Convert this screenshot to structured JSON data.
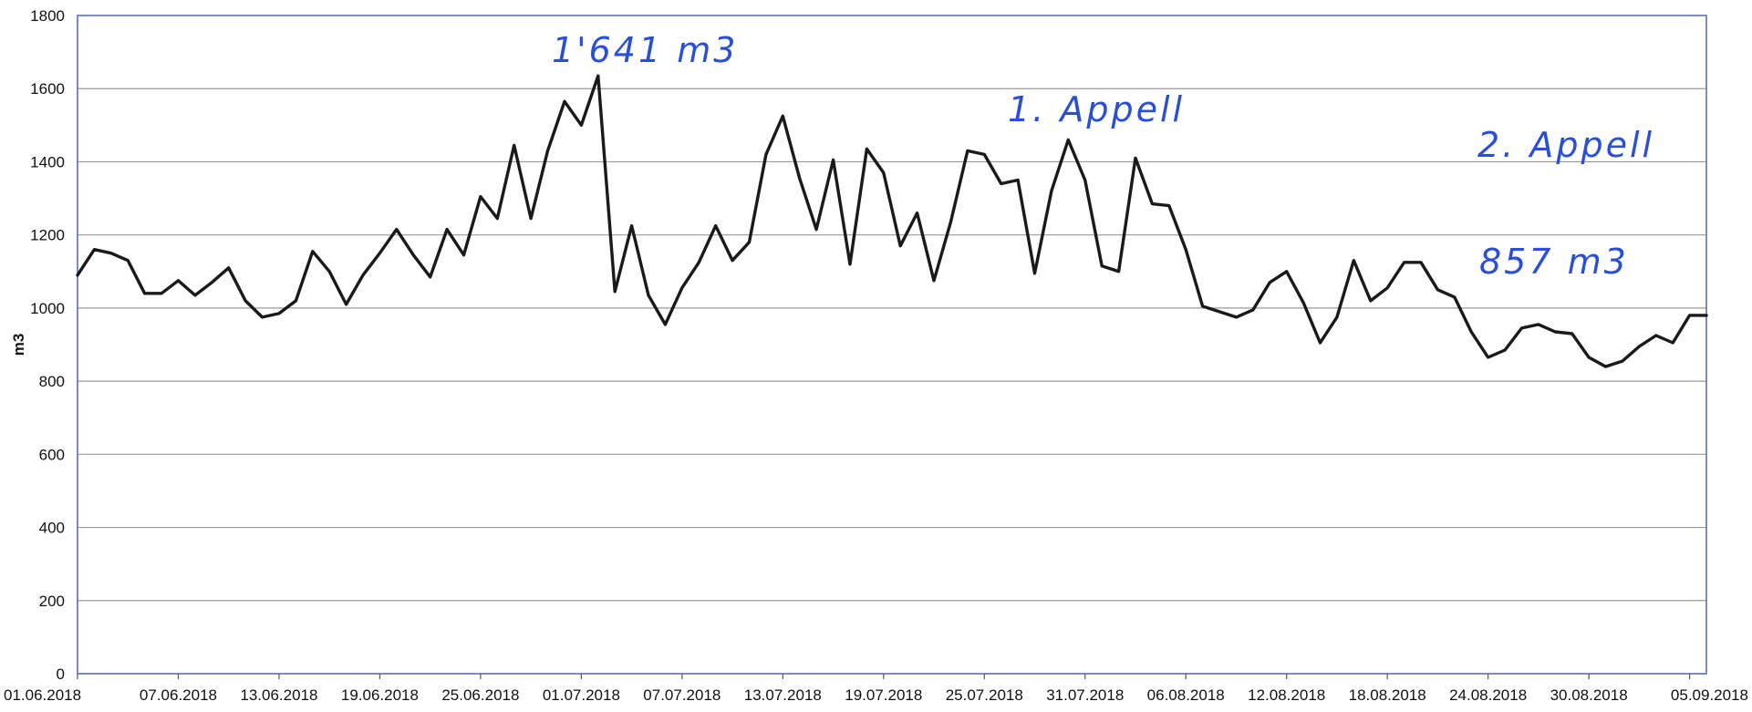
{
  "chart_data": {
    "type": "line",
    "title": "",
    "xlabel": "",
    "ylabel": "m3",
    "ylim": [
      0,
      1800
    ],
    "yticks": [
      0,
      200,
      400,
      600,
      800,
      1000,
      1200,
      1400,
      1600,
      1800
    ],
    "grid": true,
    "x_start": "01.06.2018",
    "x_end": "06.09.2018",
    "x_tick_labels": [
      "01.06.2018",
      "07.06.2018",
      "13.06.2018",
      "19.06.2018",
      "25.06.2018",
      "01.07.2018",
      "07.07.2018",
      "13.07.2018",
      "19.07.2018",
      "25.07.2018",
      "31.07.2018",
      "06.08.2018",
      "12.08.2018",
      "18.08.2018",
      "24.08.2018",
      "30.08.2018",
      "05.09.2018"
    ],
    "series": [
      {
        "name": "",
        "color": "#1a1a1a",
        "x": [
          "01.06.2018",
          "02.06.2018",
          "03.06.2018",
          "04.06.2018",
          "05.06.2018",
          "06.06.2018",
          "07.06.2018",
          "08.06.2018",
          "09.06.2018",
          "10.06.2018",
          "11.06.2018",
          "12.06.2018",
          "13.06.2018",
          "14.06.2018",
          "15.06.2018",
          "16.06.2018",
          "17.06.2018",
          "18.06.2018",
          "19.06.2018",
          "20.06.2018",
          "21.06.2018",
          "22.06.2018",
          "23.06.2018",
          "24.06.2018",
          "25.06.2018",
          "26.06.2018",
          "27.06.2018",
          "28.06.2018",
          "29.06.2018",
          "30.06.2018",
          "01.07.2018",
          "02.07.2018",
          "03.07.2018",
          "04.07.2018",
          "05.07.2018",
          "06.07.2018",
          "07.07.2018",
          "08.07.2018",
          "09.07.2018",
          "10.07.2018",
          "11.07.2018",
          "12.07.2018",
          "13.07.2018",
          "14.07.2018",
          "15.07.2018",
          "16.07.2018",
          "17.07.2018",
          "18.07.2018",
          "19.07.2018",
          "20.07.2018",
          "21.07.2018",
          "22.07.2018",
          "23.07.2018",
          "24.07.2018",
          "25.07.2018",
          "26.07.2018",
          "27.07.2018",
          "28.07.2018",
          "29.07.2018",
          "30.07.2018",
          "31.07.2018",
          "01.08.2018",
          "02.08.2018",
          "03.08.2018",
          "04.08.2018",
          "05.08.2018",
          "06.08.2018",
          "07.08.2018",
          "08.08.2018",
          "09.08.2018",
          "10.08.2018",
          "11.08.2018",
          "12.08.2018",
          "13.08.2018",
          "14.08.2018",
          "15.08.2018",
          "16.08.2018",
          "17.08.2018",
          "18.08.2018",
          "19.08.2018",
          "20.08.2018",
          "21.08.2018",
          "22.08.2018",
          "23.08.2018",
          "24.08.2018",
          "25.08.2018",
          "26.08.2018",
          "27.08.2018",
          "28.08.2018",
          "29.08.2018",
          "30.08.2018",
          "31.08.2018",
          "01.09.2018",
          "02.09.2018",
          "03.09.2018",
          "04.09.2018",
          "05.09.2018",
          "06.09.2018"
        ],
        "values": [
          1090,
          1160,
          1150,
          1130,
          1040,
          1040,
          1075,
          1035,
          1070,
          1110,
          1020,
          975,
          985,
          1020,
          1155,
          1100,
          1010,
          1090,
          1150,
          1215,
          1145,
          1085,
          1215,
          1145,
          1305,
          1245,
          1445,
          1245,
          1430,
          1565,
          1500,
          1635,
          1045,
          1225,
          1035,
          955,
          1055,
          1125,
          1225,
          1130,
          1180,
          1420,
          1525,
          1355,
          1215,
          1405,
          1120,
          1435,
          1370,
          1170,
          1260,
          1075,
          1235,
          1430,
          1420,
          1340,
          1350,
          1095,
          1320,
          1460,
          1350,
          1115,
          1100,
          1410,
          1285,
          1280,
          1160,
          1005,
          990,
          975,
          995,
          1070,
          1100,
          1015,
          905,
          975,
          1130,
          1020,
          1055,
          1125,
          1125,
          1050,
          1030,
          935,
          865,
          885,
          945,
          955,
          935,
          930,
          865,
          840,
          855,
          895,
          925,
          905,
          980,
          980
        ]
      }
    ],
    "annotations": [
      "1'641 m3",
      "1. Appell",
      "2. Appell",
      "857 m3"
    ]
  }
}
